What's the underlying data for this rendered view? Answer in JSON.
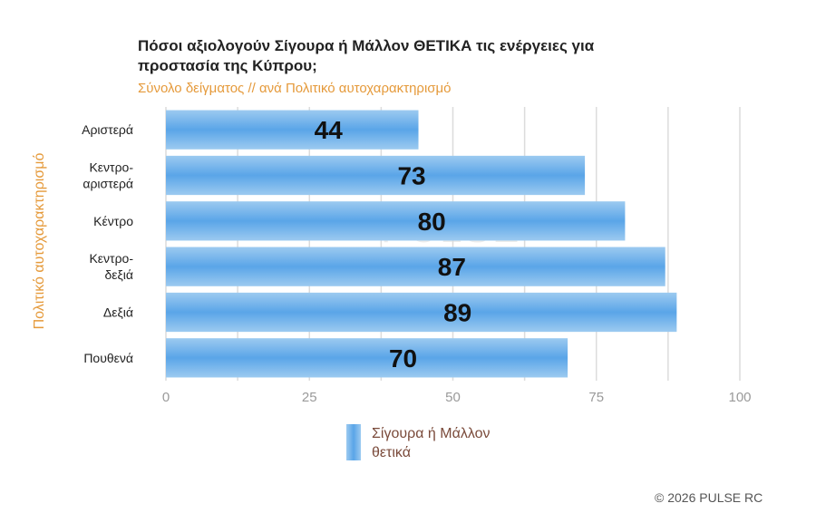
{
  "title": "Πόσοι αξιολογούν Σίγουρα ή Μάλλον ΘΕΤΙΚΑ τις ενέργειες για προστασία της Κύπρου;",
  "subtitle": "Σύνολο δείγματος // ανά Πολιτικό αυτοχαρακτηρισμό",
  "watermark": "PULSE",
  "copyright": "© 2026 PULSE RC",
  "colors": {
    "accent": "#e59a3b",
    "bar_edge": "#9ccaf0",
    "bar_mid": "#5aa5e8"
  },
  "chart_data": {
    "type": "bar",
    "orientation": "horizontal",
    "title": "Πόσοι αξιολογούν Σίγουρα ή Μάλλον ΘΕΤΙΚΑ τις ενέργειες για προστασία της Κύπρου;",
    "subtitle": "Σύνολο δείγματος // ανά Πολιτικό αυτοχαρακτηρισμό",
    "ylabel": "Πολιτικό αυτοχαρακτηρισμό",
    "xlabel": "",
    "categories": [
      "Αριστερά",
      "Κεντρο-αριστερά",
      "Κέντρο",
      "Κεντρο-δεξιά",
      "Δεξιά",
      "Πουθενά"
    ],
    "category_lines": [
      [
        "Αριστερά"
      ],
      [
        "Κεντρο-",
        "αριστερά"
      ],
      [
        "Κέντρο"
      ],
      [
        "Κεντρο-",
        "δεξιά"
      ],
      [
        "Δεξιά"
      ],
      [
        "Πουθενά"
      ]
    ],
    "series": [
      {
        "name": "Σίγουρα ή Μάλλον θετικά",
        "values": [
          44,
          73,
          80,
          87,
          89,
          70
        ]
      }
    ],
    "xlim": [
      0,
      100
    ],
    "xticks": [
      "0",
      "25",
      "50",
      "75",
      "100"
    ],
    "grid": true,
    "legend": "bottom"
  }
}
